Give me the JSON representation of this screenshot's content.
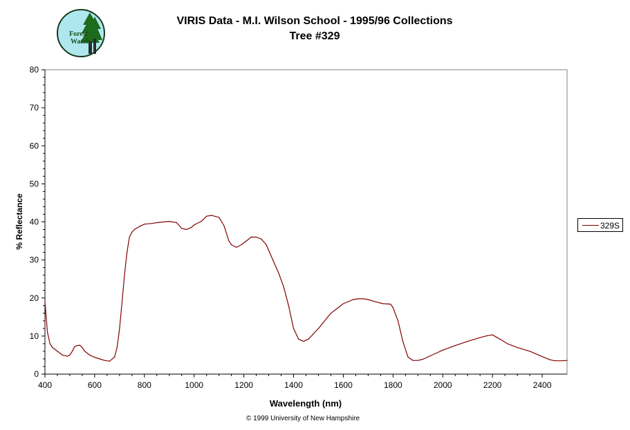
{
  "logo": {
    "line1": "Forest",
    "line2": "Watch"
  },
  "chart_data": {
    "type": "line",
    "title": "VIRIS Data - M.I. Wilson School - 1995/96 Collections",
    "subtitle": "Tree #329",
    "xlabel": "Wavelength (nm)",
    "ylabel": "% Reflectance",
    "xlim": [
      400,
      2500
    ],
    "ylim": [
      0,
      80
    ],
    "xticks": [
      400,
      600,
      800,
      1000,
      1200,
      1400,
      1600,
      1800,
      2000,
      2200,
      2400
    ],
    "yticks": [
      0,
      10,
      20,
      30,
      40,
      50,
      60,
      70,
      80
    ],
    "grid": false,
    "legend_position": "right",
    "series": [
      {
        "name": "329S",
        "color": "#800000",
        "x": [
          400,
          410,
          420,
          430,
          450,
          470,
          490,
          500,
          510,
          520,
          530,
          540,
          550,
          560,
          570,
          580,
          600,
          620,
          640,
          660,
          680,
          690,
          700,
          710,
          720,
          730,
          740,
          750,
          760,
          780,
          800,
          830,
          860,
          900,
          930,
          950,
          970,
          990,
          1000,
          1030,
          1050,
          1070,
          1100,
          1120,
          1140,
          1150,
          1170,
          1190,
          1210,
          1230,
          1250,
          1270,
          1290,
          1300,
          1320,
          1340,
          1360,
          1380,
          1400,
          1420,
          1440,
          1460,
          1500,
          1550,
          1600,
          1640,
          1660,
          1680,
          1700,
          1730,
          1760,
          1790,
          1800,
          1820,
          1840,
          1860,
          1880,
          1900,
          1920,
          1950,
          2000,
          2050,
          2100,
          2150,
          2180,
          2200,
          2230,
          2260,
          2300,
          2350,
          2400,
          2430,
          2450,
          2480,
          2500
        ],
        "values": [
          19,
          11,
          8,
          7,
          6,
          5,
          4.7,
          5,
          6,
          7.3,
          7.5,
          7.6,
          7,
          6,
          5.5,
          5,
          4.4,
          4,
          3.6,
          3.4,
          4.5,
          7,
          12,
          19,
          26,
          32,
          36,
          37.3,
          38,
          38.8,
          39.4,
          39.6,
          39.9,
          40.1,
          39.8,
          38.3,
          38,
          38.6,
          39.2,
          40.2,
          41.5,
          41.7,
          41.2,
          39,
          35,
          34,
          33.3,
          34,
          35,
          36,
          36,
          35.5,
          34,
          32.5,
          29.5,
          26.5,
          23,
          18,
          12,
          9.2,
          8.6,
          9.2,
          12,
          16,
          18.5,
          19.6,
          19.8,
          19.8,
          19.6,
          19,
          18.5,
          18.4,
          17.5,
          14,
          8.5,
          4.5,
          3.6,
          3.6,
          3.9,
          4.8,
          6.3,
          7.5,
          8.6,
          9.6,
          10.1,
          10.3,
          9.2,
          8,
          7,
          6,
          4.6,
          3.8,
          3.5,
          3.5,
          3.6
        ]
      }
    ]
  },
  "footer": {
    "copyright": "© 1999 University of New Hampshire"
  }
}
